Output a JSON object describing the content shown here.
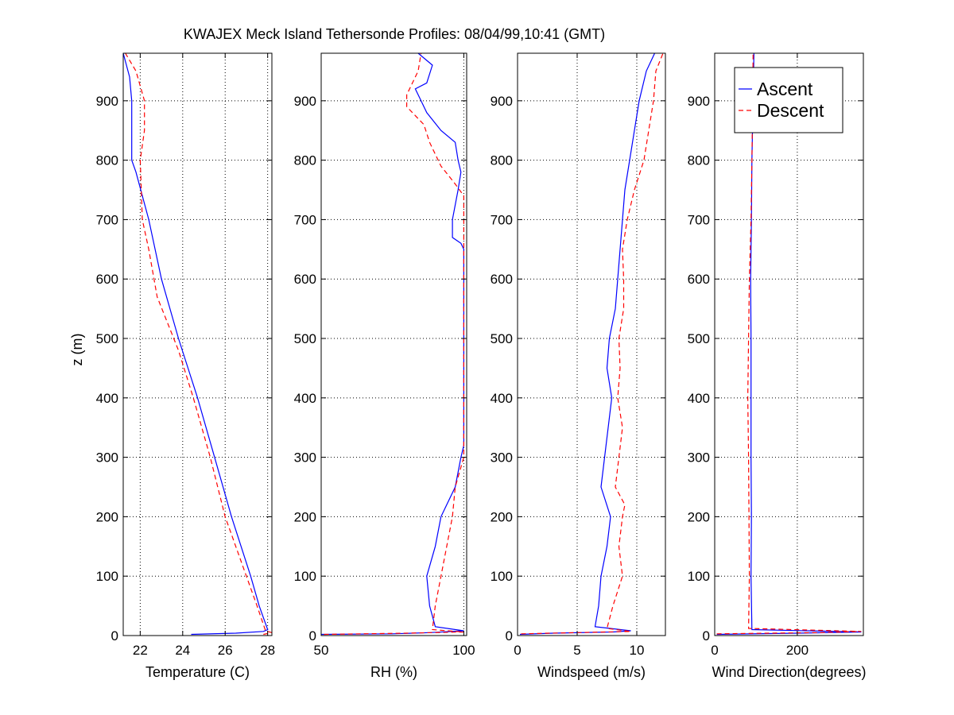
{
  "figure": {
    "title": "KWAJEX Meck Island Tethersonde Profiles: 08/04/99,10:41 (GMT)",
    "ylabel": "z (m)"
  },
  "legend": {
    "placement": "top-right of fourth panel",
    "entries": [
      {
        "label": "Ascent",
        "color": "#0000ff",
        "style": "solid"
      },
      {
        "label": "Descent",
        "color": "#ff0000",
        "style": "dashed"
      }
    ]
  },
  "colors": {
    "ascent": "#0000ff",
    "descent": "#ff0000",
    "grid": "#000000"
  },
  "chart_data": [
    {
      "type": "line",
      "xlabel": "Temperature (C)",
      "xlim": [
        21.2,
        28.2
      ],
      "ylim": [
        0,
        980
      ],
      "xticks": [
        22,
        24,
        26,
        28
      ],
      "yticks": [
        0,
        100,
        200,
        300,
        400,
        500,
        600,
        700,
        800,
        900
      ],
      "grid": true,
      "series": [
        {
          "name": "Ascent",
          "points": [
            [
              24.4,
              2
            ],
            [
              26.5,
              4
            ],
            [
              27.8,
              7
            ],
            [
              28.0,
              10
            ],
            [
              27.6,
              50
            ],
            [
              27.2,
              100
            ],
            [
              26.3,
              200
            ],
            [
              25.5,
              300
            ],
            [
              24.7,
              400
            ],
            [
              23.8,
              500
            ],
            [
              23.0,
              600
            ],
            [
              22.4,
              700
            ],
            [
              21.8,
              780
            ],
            [
              21.6,
              800
            ],
            [
              21.6,
              850
            ],
            [
              21.6,
              900
            ],
            [
              21.5,
              940
            ],
            [
              21.2,
              980
            ]
          ]
        },
        {
          "name": "Descent",
          "points": [
            [
              27.8,
              2
            ],
            [
              28.2,
              5
            ],
            [
              27.9,
              8
            ],
            [
              27.5,
              50
            ],
            [
              27.0,
              100
            ],
            [
              26.0,
              200
            ],
            [
              25.3,
              300
            ],
            [
              24.5,
              400
            ],
            [
              23.8,
              480
            ],
            [
              22.8,
              570
            ],
            [
              22.4,
              650
            ],
            [
              22.1,
              700
            ],
            [
              22.0,
              800
            ],
            [
              22.2,
              850
            ],
            [
              22.2,
              900
            ],
            [
              21.8,
              950
            ],
            [
              21.3,
              980
            ]
          ]
        }
      ]
    },
    {
      "type": "line",
      "xlabel": "RH (%)",
      "xlim": [
        50,
        101
      ],
      "ylim": [
        0,
        980
      ],
      "xticks": [
        50,
        100
      ],
      "yticks": [
        0,
        100,
        200,
        300,
        400,
        500,
        600,
        700,
        800,
        900
      ],
      "grid": true,
      "series": [
        {
          "name": "Ascent",
          "points": [
            [
              50,
              2
            ],
            [
              75,
              3
            ],
            [
              88,
              5
            ],
            [
              100,
              8
            ],
            [
              90,
              15
            ],
            [
              88,
              50
            ],
            [
              87,
              100
            ],
            [
              90,
              150
            ],
            [
              92,
              200
            ],
            [
              97,
              250
            ],
            [
              99,
              300
            ],
            [
              100,
              320
            ],
            [
              100,
              400
            ],
            [
              100,
              500
            ],
            [
              100,
              600
            ],
            [
              100,
              650
            ],
            [
              99,
              660
            ],
            [
              96,
              670
            ],
            [
              96,
              700
            ],
            [
              98,
              750
            ],
            [
              99,
              780
            ],
            [
              98,
              800
            ],
            [
              97,
              830
            ],
            [
              92,
              850
            ],
            [
              87,
              880
            ],
            [
              85,
              900
            ],
            [
              83,
              920
            ],
            [
              87,
              930
            ],
            [
              89,
              960
            ],
            [
              84,
              980
            ]
          ]
        },
        {
          "name": "Descent",
          "points": [
            [
              51,
              2
            ],
            [
              80,
              4
            ],
            [
              100,
              6
            ],
            [
              89,
              10
            ],
            [
              90,
              50
            ],
            [
              92,
              100
            ],
            [
              94,
              150
            ],
            [
              96,
              200
            ],
            [
              97,
              250
            ],
            [
              100,
              300
            ],
            [
              100,
              400
            ],
            [
              100,
              500
            ],
            [
              100,
              600
            ],
            [
              100,
              700
            ],
            [
              100,
              740
            ],
            [
              97,
              760
            ],
            [
              92,
              790
            ],
            [
              88,
              830
            ],
            [
              86,
              860
            ],
            [
              80,
              890
            ],
            [
              80,
              910
            ],
            [
              82,
              930
            ],
            [
              84,
              950
            ],
            [
              85,
              980
            ]
          ]
        }
      ]
    },
    {
      "type": "line",
      "xlabel": "Windspeed (m/s)",
      "xlim": [
        0,
        12.4
      ],
      "ylim": [
        0,
        980
      ],
      "xticks": [
        0,
        5,
        10
      ],
      "yticks": [
        0,
        100,
        200,
        300,
        400,
        500,
        600,
        700,
        800,
        900
      ],
      "grid": true,
      "series": [
        {
          "name": "Ascent",
          "points": [
            [
              0.2,
              2
            ],
            [
              3.0,
              4
            ],
            [
              8.0,
              6
            ],
            [
              9.5,
              8
            ],
            [
              6.5,
              15
            ],
            [
              6.8,
              50
            ],
            [
              7.0,
              100
            ],
            [
              7.5,
              150
            ],
            [
              7.8,
              200
            ],
            [
              7.0,
              250
            ],
            [
              7.3,
              300
            ],
            [
              7.6,
              350
            ],
            [
              7.9,
              400
            ],
            [
              7.5,
              450
            ],
            [
              7.7,
              500
            ],
            [
              8.2,
              550
            ],
            [
              8.4,
              600
            ],
            [
              8.6,
              650
            ],
            [
              8.8,
              700
            ],
            [
              9.0,
              750
            ],
            [
              9.4,
              800
            ],
            [
              9.8,
              850
            ],
            [
              10.2,
              900
            ],
            [
              10.8,
              950
            ],
            [
              11.5,
              980
            ]
          ]
        },
        {
          "name": "Descent",
          "points": [
            [
              0.3,
              3
            ],
            [
              5.0,
              5
            ],
            [
              9.5,
              7
            ],
            [
              7.5,
              12
            ],
            [
              8.0,
              50
            ],
            [
              8.8,
              100
            ],
            [
              8.5,
              150
            ],
            [
              8.8,
              200
            ],
            [
              9.0,
              220
            ],
            [
              8.2,
              250
            ],
            [
              8.5,
              300
            ],
            [
              8.8,
              350
            ],
            [
              8.4,
              400
            ],
            [
              8.6,
              450
            ],
            [
              8.5,
              500
            ],
            [
              8.9,
              550
            ],
            [
              8.9,
              600
            ],
            [
              8.8,
              650
            ],
            [
              9.2,
              700
            ],
            [
              9.8,
              750
            ],
            [
              10.6,
              800
            ],
            [
              11.0,
              850
            ],
            [
              11.4,
              900
            ],
            [
              11.6,
              950
            ],
            [
              12.2,
              980
            ]
          ]
        }
      ]
    },
    {
      "type": "line",
      "xlabel": "Wind Direction(degrees)",
      "xlim": [
        0,
        360
      ],
      "ylim": [
        0,
        980
      ],
      "xticks": [
        0,
        200
      ],
      "yticks": [
        0,
        100,
        200,
        300,
        400,
        500,
        600,
        700,
        800,
        900
      ],
      "grid": true,
      "series": [
        {
          "name": "Ascent",
          "points": [
            [
              5,
              2
            ],
            [
              200,
              4
            ],
            [
              355,
              6
            ],
            [
              90,
              10
            ],
            [
              88,
              100
            ],
            [
              89,
              200
            ],
            [
              88,
              300
            ],
            [
              88,
              400
            ],
            [
              88,
              500
            ],
            [
              87,
              600
            ],
            [
              89,
              700
            ],
            [
              90,
              800
            ],
            [
              93,
              900
            ],
            [
              95,
              980
            ]
          ]
        },
        {
          "name": "Descent",
          "points": [
            [
              5,
              3
            ],
            [
              250,
              5
            ],
            [
              355,
              7
            ],
            [
              82,
              12
            ],
            [
              84,
              100
            ],
            [
              83,
              200
            ],
            [
              82,
              300
            ],
            [
              80,
              400
            ],
            [
              82,
              500
            ],
            [
              84,
              600
            ],
            [
              88,
              700
            ],
            [
              90,
              800
            ],
            [
              92,
              900
            ],
            [
              93,
              980
            ]
          ]
        }
      ]
    }
  ]
}
